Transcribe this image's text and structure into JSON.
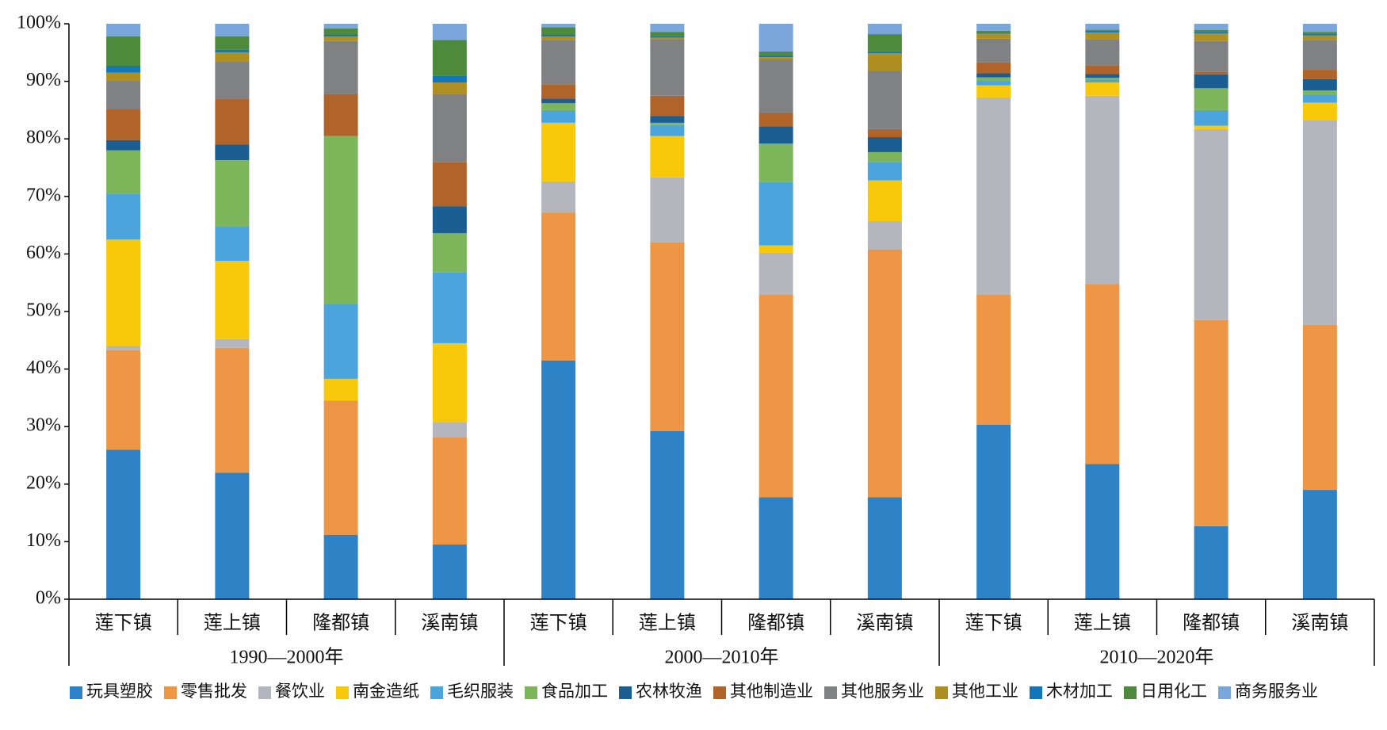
{
  "chart_data": {
    "type": "bar",
    "stacked": true,
    "categories": [
      "莲下镇",
      "莲上镇",
      "隆都镇",
      "溪南镇",
      "莲下镇",
      "莲上镇",
      "隆都镇",
      "溪南镇",
      "莲下镇",
      "莲上镇",
      "隆都镇",
      "溪南镇"
    ],
    "groups": [
      "1990—2000年",
      "2000—2010年",
      "2010—2020年"
    ],
    "ylim": [
      0,
      100
    ],
    "yticks": [
      {
        "value": 0,
        "label": "0%"
      },
      {
        "value": 10,
        "label": "10%"
      },
      {
        "value": 20,
        "label": "20%"
      },
      {
        "value": 30,
        "label": "30%"
      },
      {
        "value": 40,
        "label": "40%"
      },
      {
        "value": 50,
        "label": "50%"
      },
      {
        "value": 60,
        "label": "60%"
      },
      {
        "value": 70,
        "label": "70%"
      },
      {
        "value": 80,
        "label": "80%"
      },
      {
        "value": 90,
        "label": "90%"
      },
      {
        "value": 100,
        "label": "100%"
      }
    ],
    "legend": "bottom",
    "series": [
      {
        "name": "玩具塑胶",
        "color": "#2e83c6",
        "values": [
          26,
          22,
          11.2,
          9.5,
          41.5,
          29.2,
          17.7,
          17.7,
          30.3,
          23.5,
          12.7,
          19
        ]
      },
      {
        "name": "零售批发",
        "color": "#ec9646",
        "values": [
          17.3,
          21.7,
          23.3,
          18.7,
          25.7,
          32.8,
          35.3,
          43.1,
          22.7,
          31.3,
          35.8,
          28.7
        ]
      },
      {
        "name": "餐饮业",
        "color": "#b3b7bd",
        "values": [
          0.7,
          1.5,
          0,
          2.6,
          5.4,
          11.3,
          7.2,
          4.9,
          34.2,
          32.7,
          33.2,
          35.6
        ]
      },
      {
        "name": "南金造纸",
        "color": "#f8c90a",
        "values": [
          18.5,
          13.6,
          3.8,
          13.7,
          10.2,
          7.2,
          1.3,
          7.1,
          2.1,
          2.3,
          0.6,
          3
        ]
      },
      {
        "name": "毛织服装",
        "color": "#4ba4dc",
        "values": [
          8,
          6,
          13,
          12.3,
          2.2,
          1.9,
          11,
          3.2,
          0.9,
          0.5,
          2.7,
          1.3
        ]
      },
      {
        "name": "食品加工",
        "color": "#7db55a",
        "values": [
          7.5,
          11.5,
          29.2,
          6.8,
          1.2,
          0.4,
          6.7,
          1.7,
          0.5,
          0.3,
          3.8,
          0.8
        ]
      },
      {
        "name": "农林牧渔",
        "color": "#1a5e92",
        "values": [
          1.8,
          2.7,
          0,
          4.7,
          0.8,
          1.2,
          3,
          2.6,
          0.7,
          0.7,
          2.4,
          2
        ]
      },
      {
        "name": "其他制造业",
        "color": "#b0642a",
        "values": [
          5.4,
          8,
          7.3,
          7.7,
          2.5,
          3.5,
          2.3,
          1.4,
          1.9,
          1.5,
          0.5,
          1.6
        ]
      },
      {
        "name": "其他服务业",
        "color": "#7f8183",
        "values": [
          5,
          6.5,
          9.2,
          11.8,
          7.7,
          9.8,
          9.3,
          10.1,
          4.1,
          4.5,
          5.3,
          5.2
        ]
      },
      {
        "name": "其他工业",
        "color": "#b08f22",
        "values": [
          1.3,
          1.5,
          0.8,
          2,
          0.6,
          0.3,
          0.4,
          3.1,
          0.9,
          1.2,
          1.3,
          0.8
        ]
      },
      {
        "name": "木材加工",
        "color": "#1276b8",
        "values": [
          1.2,
          0.5,
          0.4,
          1.2,
          0.4,
          0.2,
          0.4,
          0.3,
          0.2,
          0.3,
          0.3,
          0.3
        ]
      },
      {
        "name": "日用化工",
        "color": "#4d8a3c",
        "values": [
          5.1,
          2.3,
          1,
          6.2,
          1.2,
          0.8,
          0.6,
          3,
          0.3,
          0.2,
          0.3,
          0.3
        ]
      },
      {
        "name": "商务服务业",
        "color": "#7aa6dc",
        "values": [
          2.2,
          2.2,
          0.8,
          2.8,
          0.6,
          1.4,
          4.8,
          1.8,
          1.2,
          1,
          1.1,
          1.4
        ]
      }
    ]
  }
}
